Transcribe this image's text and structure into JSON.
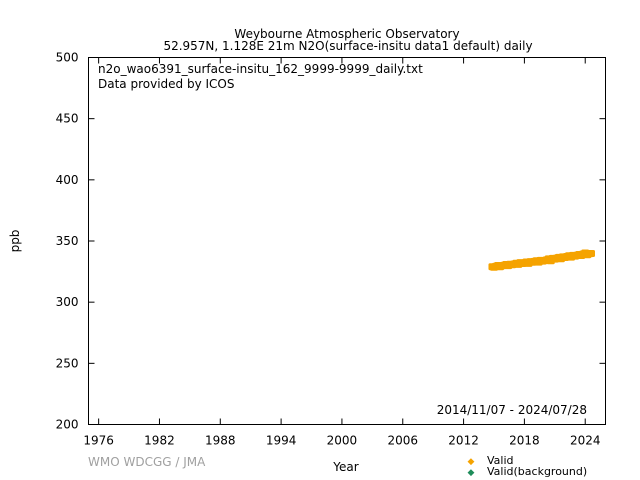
{
  "chart_data": {
    "type": "scatter",
    "title": "Weybourne Atmospheric Observatory",
    "subtitle": "52.957N, 1.128E 21m    N2O(surface-insitu data1 default) daily",
    "file_label": "n2o_wao6391_surface-insitu_162_9999-9999_daily.txt",
    "provider_label": "Data provided by ICOS",
    "date_range": "2014/11/07 - 2024/07/28",
    "credit": "WMO WDCGG / JMA",
    "xlabel": "Year",
    "ylabel": "ppb",
    "xlim": [
      1975,
      2026
    ],
    "ylim": [
      200,
      500
    ],
    "x_ticks": [
      1976,
      1982,
      1988,
      1994,
      2000,
      2006,
      2012,
      2018,
      2024
    ],
    "y_ticks": [
      200,
      250,
      300,
      350,
      400,
      450,
      500
    ],
    "grid": false,
    "legend_position": "bottom-right",
    "series": [
      {
        "name": "Valid",
        "color": "#f5a300",
        "x": [
          2014.85,
          2015.0,
          2015.2,
          2015.4,
          2015.6,
          2015.8,
          2016.0,
          2016.2,
          2016.4,
          2016.6,
          2016.8,
          2017.0,
          2017.2,
          2017.4,
          2017.6,
          2017.8,
          2018.0,
          2018.2,
          2018.4,
          2018.6,
          2018.8,
          2019.0,
          2019.2,
          2019.4,
          2019.6,
          2019.8,
          2020.0,
          2020.2,
          2020.4,
          2020.6,
          2020.8,
          2021.0,
          2021.2,
          2021.4,
          2021.6,
          2021.8,
          2022.0,
          2022.2,
          2022.4,
          2022.6,
          2022.8,
          2023.0,
          2023.2,
          2023.4,
          2023.6,
          2023.8,
          2024.0,
          2024.2,
          2024.4,
          2024.57
        ],
        "y": [
          329.0,
          328.5,
          329.4,
          330.0,
          328.9,
          329.8,
          330.2,
          330.8,
          329.9,
          331.0,
          330.6,
          331.2,
          331.8,
          330.9,
          332.3,
          331.6,
          332.0,
          332.8,
          331.7,
          333.1,
          332.6,
          333.3,
          333.9,
          332.7,
          334.2,
          333.5,
          334.0,
          334.6,
          335.4,
          333.9,
          335.8,
          335.2,
          336.0,
          336.6,
          335.5,
          337.0,
          336.5,
          337.3,
          337.9,
          336.8,
          338.2,
          337.6,
          338.4,
          339.0,
          338.1,
          339.4,
          340.2,
          338.8,
          339.6,
          339.8
        ]
      },
      {
        "name": "Valid(background)",
        "color": "#1e8c5a",
        "x": [],
        "y": []
      }
    ]
  }
}
